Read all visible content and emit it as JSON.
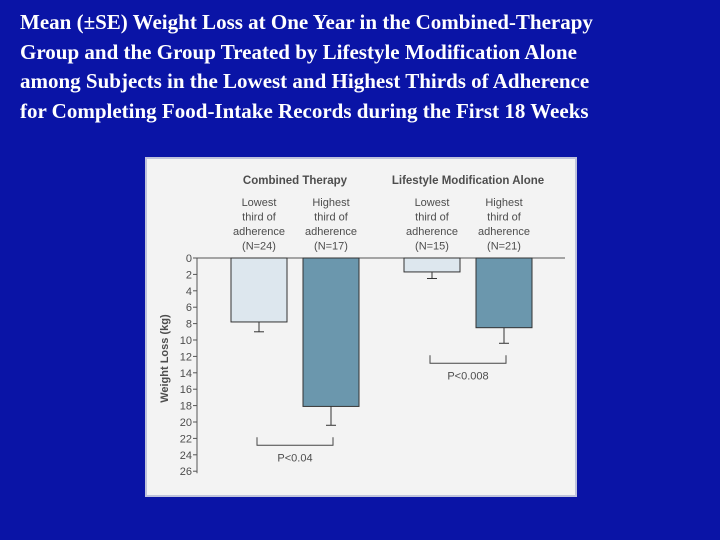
{
  "slide": {
    "title_lines": [
      "Mean (±SE) Weight Loss at One Year in the Combined-Therapy",
      "Group and the Group Treated by Lifestyle Modification Alone",
      "among Subjects in the Lowest and Highest Thirds of Adherence",
      "for Completing Food-Intake Records during the First 18 Weeks"
    ]
  },
  "colors": {
    "background": "#0a14a6",
    "lowest_bar": "#dde7ee",
    "highest_bar": "#6b97ad"
  },
  "chart_data": {
    "type": "bar",
    "ylabel": "Weight Loss (kg)",
    "ylim": [
      0,
      26
    ],
    "y_inverted": true,
    "yticks": [
      "0",
      "2",
      "4",
      "6",
      "8",
      "10",
      "12",
      "14",
      "16",
      "18",
      "20",
      "22",
      "24",
      "26"
    ],
    "groups": [
      {
        "name": "Combined Therapy",
        "bars": [
          {
            "label_lines": [
              "Lowest",
              "third of",
              "adherence",
              "(N=24)"
            ],
            "series": "Lowest third of adherence",
            "value": 7.8,
            "se": 1.2
          },
          {
            "label_lines": [
              "Highest",
              "third of",
              "adherence",
              "(N=17)"
            ],
            "series": "Highest third of adherence",
            "value": 18.1,
            "se": 2.3
          }
        ],
        "comparison": "P<0.04"
      },
      {
        "name": "Lifestyle Modification Alone",
        "bars": [
          {
            "label_lines": [
              "Lowest",
              "third of",
              "adherence",
              "(N=15)"
            ],
            "series": "Lowest third of adherence",
            "value": 1.7,
            "se": 0.8
          },
          {
            "label_lines": [
              "Highest",
              "third of",
              "adherence",
              "(N=21)"
            ],
            "series": "Highest third of adherence",
            "value": 8.5,
            "se": 1.9
          }
        ],
        "comparison": "P<0.008"
      }
    ]
  }
}
